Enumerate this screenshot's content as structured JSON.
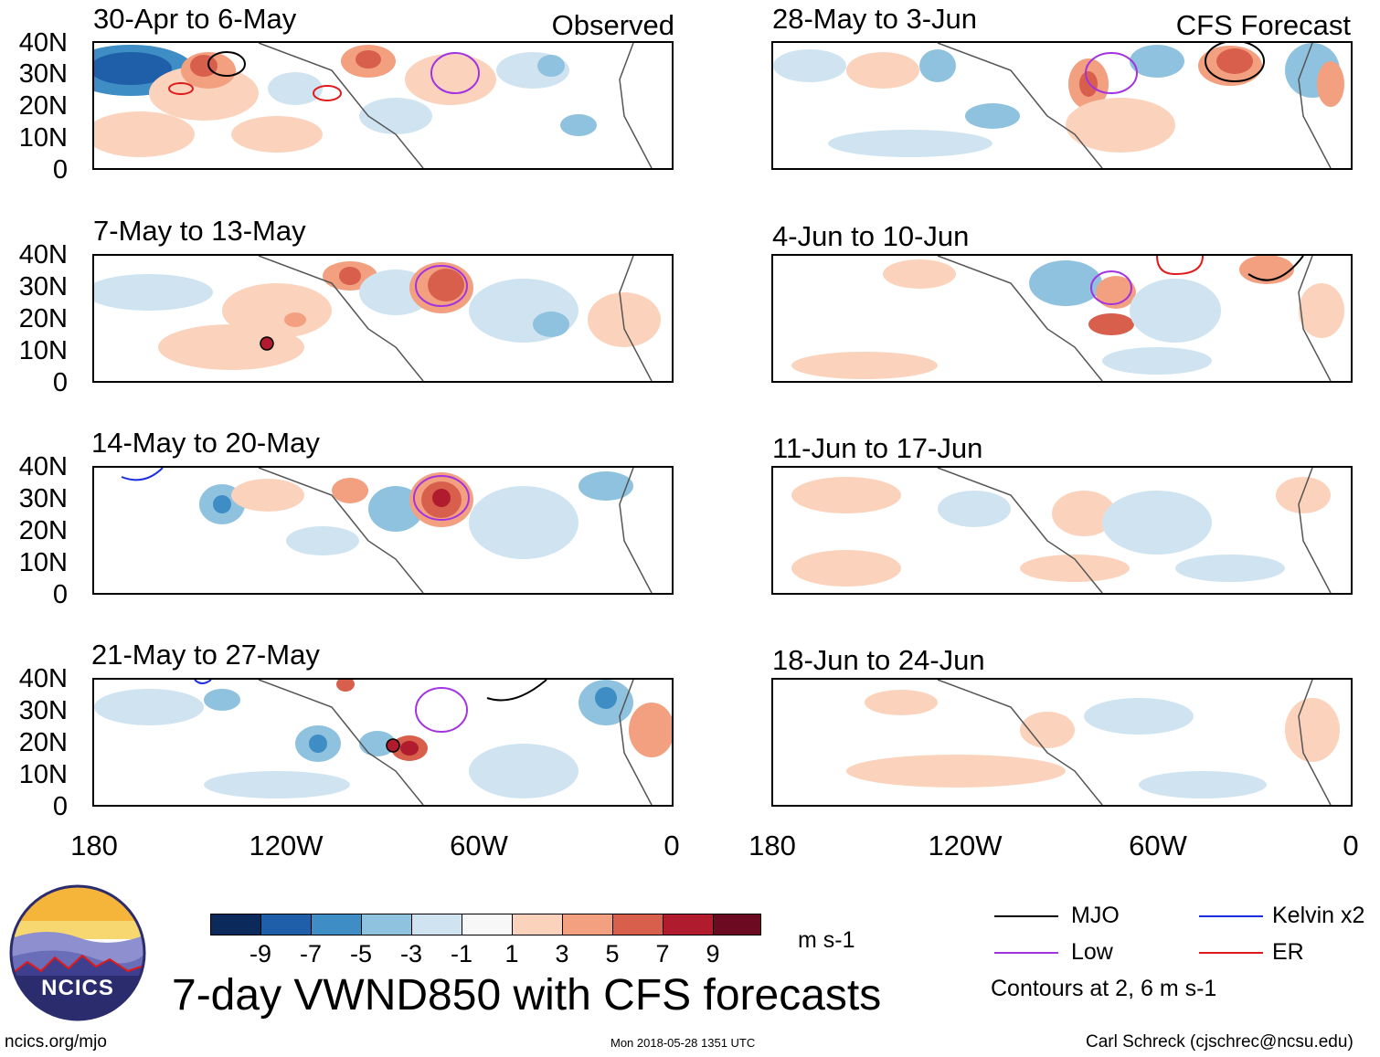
{
  "panels_left": [
    {
      "title": "30-Apr to 6-May",
      "corner": "Observed"
    },
    {
      "title": "7-May to 13-May",
      "corner": ""
    },
    {
      "title": "14-May to 20-May",
      "corner": ""
    },
    {
      "title": "21-May to 27-May",
      "corner": ""
    }
  ],
  "panels_right": [
    {
      "title": "28-May to 3-Jun",
      "corner": "CFS Forecast"
    },
    {
      "title": "4-Jun to 10-Jun",
      "corner": ""
    },
    {
      "title": "11-Jun to 17-Jun",
      "corner": ""
    },
    {
      "title": "18-Jun to 24-Jun",
      "corner": ""
    }
  ],
  "y_ticks": [
    "40N",
    "30N",
    "20N",
    "10N",
    "0"
  ],
  "x_ticks": [
    "180",
    "120W",
    "60W",
    "0"
  ],
  "colorbar": {
    "colors": [
      "#0b2a5b",
      "#1f5ea8",
      "#3e8dc4",
      "#8fc2de",
      "#cfe4f0",
      "#f7f7f7",
      "#fbd3bd",
      "#f2a07f",
      "#d85f4c",
      "#b01c2e",
      "#6b0a20"
    ],
    "labels": [
      "-9",
      "-7",
      "-5",
      "-3",
      "-1",
      "1",
      "3",
      "5",
      "7",
      "9"
    ],
    "units": "m s-1"
  },
  "main_title": "7-day VWND850 with CFS forecasts",
  "legend": {
    "items": [
      {
        "label": "MJO",
        "color": "#000000"
      },
      {
        "label": "Kelvin x2",
        "color": "#1a2ee0"
      },
      {
        "label": "Low",
        "color": "#a233e0"
      },
      {
        "label": "ER",
        "color": "#e01a1a"
      }
    ],
    "note": "Contours at 2, 6 m s-1"
  },
  "logo": {
    "text": "NCICS"
  },
  "footer": {
    "url": "ncics.org/mjo",
    "timestamp": "Mon 2018-05-28 1351 UTC",
    "credit": "Carl Schreck (cjschrec@ncsu.edu)"
  }
}
